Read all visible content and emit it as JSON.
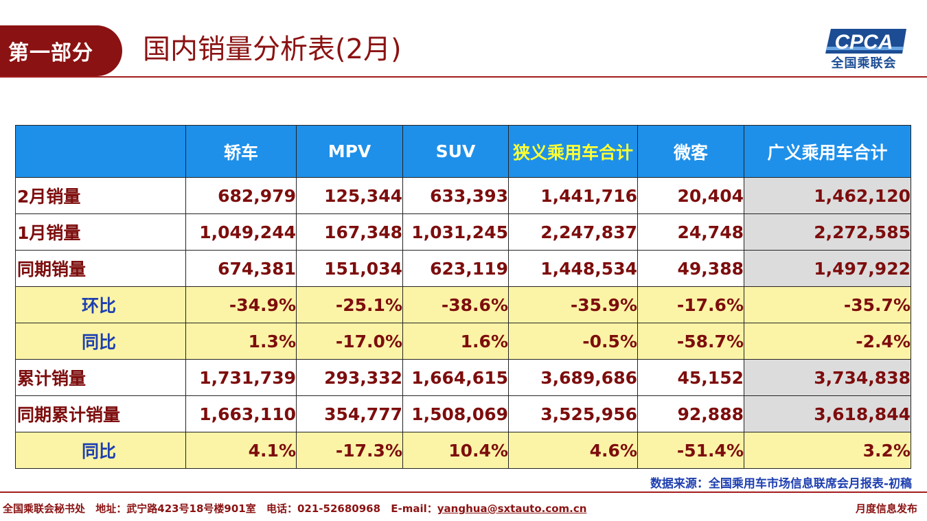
{
  "header": {
    "section_label": "第一部分",
    "title": "国内销量分析表(2月)",
    "logo_text": "CPCA",
    "logo_subtitle": "全国乘联会"
  },
  "table": {
    "columns": [
      "",
      "轿车",
      "MPV",
      "SUV",
      "狭义乘用车合计",
      "微客",
      "广义乘用车合计"
    ],
    "rows": [
      {
        "label": "2月销量",
        "type": "value",
        "values": [
          "682,979",
          "125,344",
          "633,393",
          "1,441,716",
          "20,404",
          "1,462,120"
        ]
      },
      {
        "label": "1月销量",
        "type": "value",
        "values": [
          "1,049,244",
          "167,348",
          "1,031,245",
          "2,247,837",
          "24,748",
          "2,272,585"
        ]
      },
      {
        "label": "同期销量",
        "type": "value",
        "values": [
          "674,381",
          "151,034",
          "623,119",
          "1,448,534",
          "49,388",
          "1,497,922"
        ]
      },
      {
        "label": "环比",
        "type": "pct",
        "values": [
          "-34.9%",
          "-25.1%",
          "-38.6%",
          "-35.9%",
          "-17.6%",
          "-35.7%"
        ]
      },
      {
        "label": "同比",
        "type": "pct",
        "values": [
          "1.3%",
          "-17.0%",
          "1.6%",
          "-0.5%",
          "-58.7%",
          "-2.4%"
        ]
      },
      {
        "label": "累计销量",
        "type": "value",
        "values": [
          "1,731,739",
          "293,332",
          "1,664,615",
          "3,689,686",
          "45,152",
          "3,734,838"
        ]
      },
      {
        "label": "同期累计销量",
        "type": "value",
        "values": [
          "1,663,110",
          "354,777",
          "1,508,069",
          "3,525,956",
          "92,888",
          "3,618,844"
        ]
      },
      {
        "label": "同比",
        "type": "pct",
        "values": [
          "4.1%",
          "-17.3%",
          "10.4%",
          "4.6%",
          "-51.4%",
          "3.2%"
        ]
      }
    ]
  },
  "source_note": "数据来源：全国乘用车市场信息联席会月报表-初稿",
  "footer": {
    "org": "全国乘联会秘书处",
    "address": "地址：武宁路423号18号楼901室",
    "phone": "电话：021-52680968",
    "email_label": "E-mail：",
    "email": "yanghua@sxtauto.com.cn",
    "right_text": "月度信息发布"
  },
  "colors": {
    "brand_red": "#8b1212",
    "header_blue": "#1e90ea",
    "highlight_yellow": "#ffff33",
    "pct_row_bg": "#fbf4a6",
    "total_col_bg": "#dcdcdc",
    "label_blue": "#1e3fb0"
  }
}
